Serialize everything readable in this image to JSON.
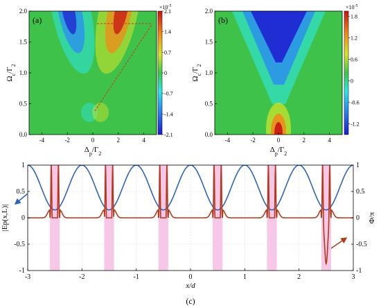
{
  "chart_data": [
    {
      "id": "a",
      "type": "heatmap",
      "panel_label": "(a)",
      "xlabel": "Δp/Γ2",
      "ylabel": "Ωc/Γ2",
      "xlim": [
        -5,
        5
      ],
      "ylim": [
        0,
        2
      ],
      "x_ticks": [
        -4,
        -2,
        0,
        2,
        4
      ],
      "y_ticks": [
        0.0,
        0.5,
        1.0,
        1.5,
        2.0
      ],
      "colorbar_scale": "×10^-5",
      "colorbar_ticks": [
        2.1,
        1.4,
        0.7,
        0,
        -0.7,
        -1.4,
        -2.1
      ],
      "clim": [
        -2.1,
        2.1
      ],
      "pattern": "antisymmetric V: negative lobe near Δp≈-1.6, positive lobe near Δp≈+1.6, growing with Ωc"
    },
    {
      "id": "b",
      "type": "heatmap",
      "panel_label": "(b)",
      "xlabel": "Δp/Γ2",
      "ylabel": "Ωc/Γ2",
      "xlim": [
        -5,
        5
      ],
      "ylim": [
        0,
        2
      ],
      "x_ticks": [
        -4,
        -2,
        0,
        2,
        4
      ],
      "y_ticks": [
        0.0,
        0.5,
        1.0,
        1.5,
        2.0
      ],
      "colorbar_scale": "×10^-5",
      "colorbar_ticks": [
        1.8,
        1.2,
        0.6,
        0,
        -0.6,
        -1.2
      ],
      "clim": [
        -1.5,
        1.95
      ],
      "pattern": "symmetric V: positive peak at Δp=0 for small Ωc, negative region widening for large Ωc"
    },
    {
      "id": "c",
      "type": "line",
      "panel_label": "(c)",
      "xlabel": "x/d",
      "ylabel_left": "|Ep(x,L)|",
      "ylabel_right": "Φ/π",
      "xlim": [
        -3,
        3
      ],
      "ylim_left": [
        -1,
        1
      ],
      "ylim_right": [
        -1,
        1
      ],
      "x_ticks": [
        -3,
        -2,
        -1,
        0,
        1,
        2,
        3
      ],
      "y_ticks_left": [
        1,
        0.5,
        0,
        -0.5,
        -1
      ],
      "y_ticks_right": [
        1,
        0.5,
        0,
        -0.5,
        -1
      ],
      "grid": true,
      "series": [
        {
          "axis": "left",
          "color": "#2e64b8",
          "x": [
            -3,
            -2.75,
            -2.5,
            -2.25,
            -2,
            -1.75,
            -1.5,
            -1.25,
            -1,
            -0.75,
            -0.5,
            -0.25,
            0,
            0.25,
            0.5,
            0.75,
            1,
            1.25,
            1.5,
            1.75,
            2,
            2.25,
            2.5,
            2.75,
            3
          ],
          "y": [
            1.0,
            0.58,
            0.15,
            0.58,
            1.0,
            0.58,
            0.15,
            0.58,
            1.0,
            0.58,
            0.15,
            0.58,
            1.0,
            0.58,
            0.15,
            0.58,
            1.0,
            0.58,
            0.15,
            0.58,
            1.0,
            0.58,
            0.15,
            0.58,
            1.0
          ]
        },
        {
          "axis": "right",
          "color": "#b03a1c",
          "peak_centers": [
            -2.5,
            -1.5,
            -0.5,
            0.5,
            1.5,
            2.5
          ],
          "baseline": 0.0,
          "peak_edge_value": 1.0,
          "peak_center_value": -0.87,
          "peak_half_width": 0.09
        }
      ],
      "highlight_bands": [
        -2.5,
        -1.5,
        -0.5,
        0.5,
        1.5,
        2.5
      ],
      "highlight_color": "#f6c7e6",
      "arrows": [
        "left-axis arrow",
        "right-axis arrow"
      ]
    }
  ]
}
